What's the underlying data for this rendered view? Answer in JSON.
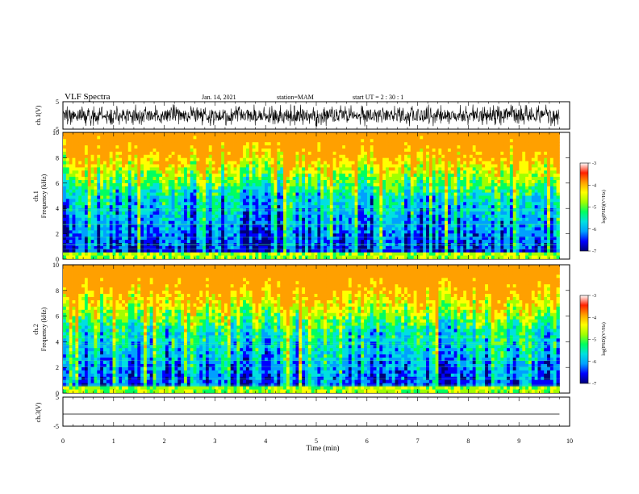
{
  "header": {
    "title": "VLF Spectra",
    "date": "Jan. 14, 2021",
    "station": "station=MAM",
    "start_ut": "start UT =  2 : 30 : 1"
  },
  "chart_data": [
    {
      "type": "line",
      "name": "waveform-ch1",
      "ylabel": "ch.1(V)",
      "ylim": [
        -5,
        5
      ],
      "yticks": [
        "5",
        "-5"
      ],
      "xlim": [
        0,
        10
      ],
      "description_values": "dense noisy waveform spanning about -4 to +4 V across 0–9.8 min"
    },
    {
      "type": "heatmap",
      "name": "spectrogram-ch1",
      "ylabel": "ch.1\nFrequency (kHz)",
      "ylabel_line1": "ch.1",
      "ylabel_line2": "Frequency (kHz)",
      "ylim": [
        0,
        10
      ],
      "yticks": [
        "0",
        "2",
        "4",
        "6",
        "8",
        "10"
      ],
      "xlim": [
        0,
        10
      ],
      "colorbar": {
        "label": "log(PSD)(V²/Hz)",
        "range": [
          -7,
          -3
        ],
        "ticks": [
          "-3",
          "-4",
          "-5",
          "-6",
          "-7"
        ]
      }
    },
    {
      "type": "heatmap",
      "name": "spectrogram-ch2",
      "ylabel_line1": "ch.2",
      "ylabel_line2": "Frequency (kHz)",
      "ylim": [
        0,
        10
      ],
      "yticks": [
        "0",
        "2",
        "4",
        "6",
        "8",
        "10"
      ],
      "xlim": [
        0,
        10
      ],
      "colorbar": {
        "label": "log(PSD)(V²/Hz)",
        "range": [
          -7,
          -3
        ],
        "ticks": [
          "-3",
          "-4",
          "-5",
          "-6",
          "-7"
        ]
      }
    },
    {
      "type": "line",
      "name": "waveform-ch3",
      "ylabel": "ch.3(V)",
      "ylim": [
        -5,
        5
      ],
      "yticks": [
        "5",
        "-5"
      ],
      "xlim": [
        0,
        10
      ],
      "x": [
        0,
        9.8
      ],
      "y": [
        0,
        0
      ]
    }
  ],
  "xaxis": {
    "label": "Time (min)",
    "ticks": [
      "0",
      "1",
      "2",
      "3",
      "4",
      "5",
      "6",
      "7",
      "8",
      "9",
      "10"
    ],
    "range": [
      0,
      10
    ]
  },
  "colormap": [
    "#000078",
    "#0000ff",
    "#00a0ff",
    "#00e0e0",
    "#00ff60",
    "#a0ff00",
    "#ffff00",
    "#ffa000",
    "#ff2000",
    "#ffffff"
  ]
}
